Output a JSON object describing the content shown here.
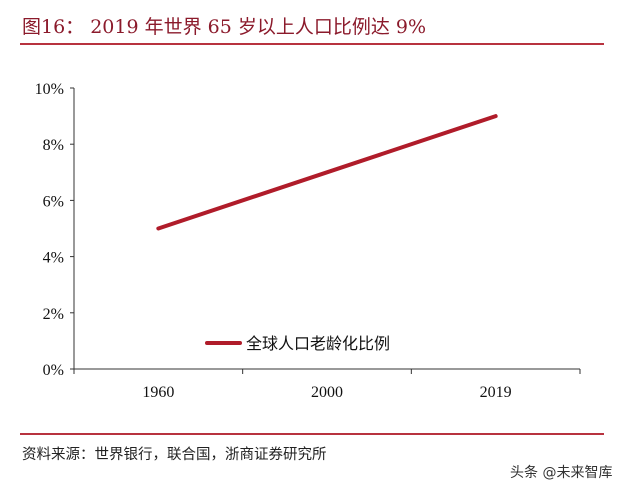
{
  "title": "图16： 2019 年世界 65 岁以上人口比例达 9%",
  "source": "资料来源：世界银行，联合国，浙商证券研究所",
  "watermark": "头条 @未来智库",
  "colors": {
    "accent": "#b8323f",
    "line": "#b01c2a"
  },
  "chart_data": {
    "type": "line",
    "title": "",
    "categories": [
      "1960",
      "2000",
      "2019"
    ],
    "series": [
      {
        "name": "全球人口老龄化比例",
        "values": [
          5.0,
          7.0,
          9.0
        ]
      }
    ],
    "yticks": [
      "0%",
      "2%",
      "4%",
      "6%",
      "8%",
      "10%"
    ],
    "ylim": [
      0,
      10
    ],
    "yunit": "%",
    "grid": false,
    "legend": "bottom-center"
  }
}
